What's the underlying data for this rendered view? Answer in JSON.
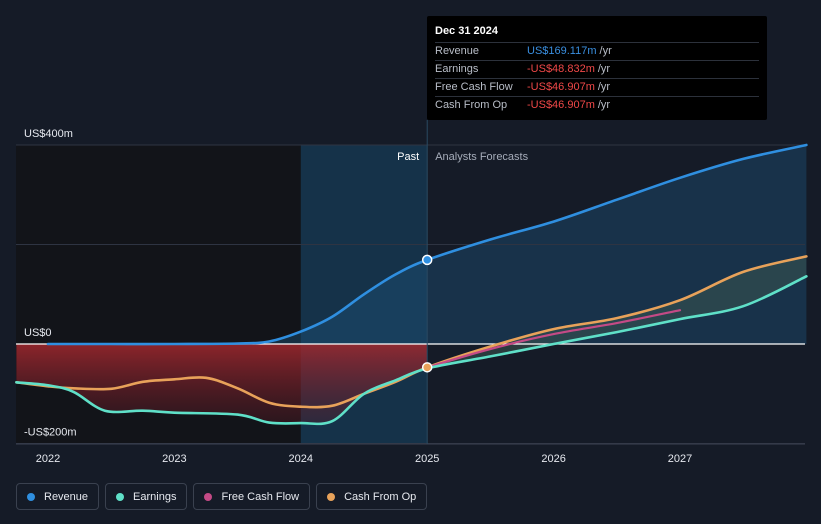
{
  "tooltip": {
    "date": "Dec 31 2024",
    "rows": [
      {
        "name": "Revenue",
        "value": "US$169.117m",
        "unit": "/yr"
      },
      {
        "name": "Earnings",
        "value": "-US$48.832m",
        "unit": "/yr"
      },
      {
        "name": "Free Cash Flow",
        "value": "-US$46.907m",
        "unit": "/yr"
      },
      {
        "name": "Cash From Op",
        "value": "-US$46.907m",
        "unit": "/yr"
      }
    ]
  },
  "legend": {
    "items": [
      {
        "label": "Revenue",
        "color": "#2f8fe0"
      },
      {
        "label": "Earnings",
        "color": "#5fe0c8"
      },
      {
        "label": "Free Cash Flow",
        "color": "#c44a86"
      },
      {
        "label": "Cash From Op",
        "color": "#e8a25a"
      }
    ]
  },
  "chart_data": {
    "type": "line",
    "title": "",
    "xlabel": "",
    "ylabel": "",
    "x_ticks": [
      "2022",
      "2023",
      "2024",
      "2025",
      "2026",
      "2027"
    ],
    "y_ticks": [
      {
        "value": 400,
        "label": "US$400m"
      },
      {
        "value": 0,
        "label": "US$0"
      },
      {
        "value": -200,
        "label": "-US$200m"
      }
    ],
    "ylim": [
      -200,
      400
    ],
    "xlim": [
      2021.75,
      2028.0
    ],
    "past_label": "Past",
    "forecast_label": "Analysts Forecasts",
    "past_end": 2025.0,
    "highlight_start": 2024.0,
    "series": [
      {
        "name": "Revenue",
        "color": "#2f8fe0",
        "x": [
          2022.0,
          2022.5,
          2023.0,
          2023.5,
          2023.75,
          2024.0,
          2024.25,
          2024.5,
          2024.75,
          2025.0,
          2025.5,
          2026.0,
          2026.5,
          2027.0,
          2027.5,
          2028.0
        ],
        "values": [
          0,
          0,
          0,
          1,
          5,
          25,
          55,
          100,
          140,
          169,
          210,
          246,
          290,
          334,
          372,
          400
        ]
      },
      {
        "name": "Earnings",
        "color": "#5fe0c8",
        "x": [
          2021.75,
          2022.0,
          2022.2,
          2022.45,
          2022.75,
          2023.0,
          2023.5,
          2023.75,
          2024.0,
          2024.25,
          2024.5,
          2024.75,
          2025.0,
          2025.5,
          2026.0,
          2026.5,
          2027.0,
          2027.5,
          2028.0
        ],
        "values": [
          -77,
          -83,
          -96,
          -134,
          -134,
          -138,
          -142,
          -158,
          -159,
          -155,
          -100,
          -73,
          -49,
          -25,
          0,
          24,
          50,
          76,
          136
        ]
      },
      {
        "name": "Free Cash Flow",
        "color": "#c44a86",
        "x": [
          2025.0,
          2025.5,
          2026.0,
          2026.5,
          2027.0
        ],
        "values": [
          -47,
          -10,
          20,
          42,
          68
        ]
      },
      {
        "name": "Cash From Op",
        "color": "#e8a25a",
        "x": [
          2021.75,
          2022.0,
          2022.2,
          2022.5,
          2022.75,
          2023.0,
          2023.25,
          2023.5,
          2023.75,
          2024.0,
          2024.25,
          2024.5,
          2024.75,
          2025.0,
          2025.5,
          2026.0,
          2026.5,
          2027.0,
          2027.5,
          2028.0
        ],
        "values": [
          -77,
          -85,
          -89,
          -90,
          -76,
          -71,
          -68,
          -89,
          -118,
          -126,
          -124,
          -100,
          -76,
          -47,
          -5,
          30,
          52,
          88,
          145,
          176
        ]
      }
    ],
    "highlighted_point": {
      "x": 2025.0,
      "revenue": 169.117,
      "earnings": -48.832,
      "free_cash_flow": -46.907,
      "cash_from_op": -46.907
    }
  }
}
